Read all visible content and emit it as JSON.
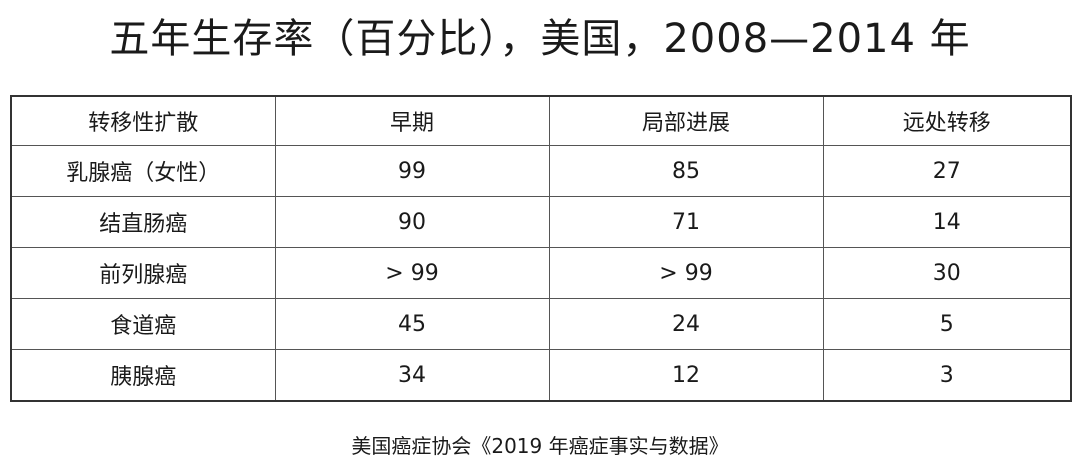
{
  "title": "五年生存率（百分比），美国，2008—2014 年",
  "table": {
    "headers": [
      "转移性扩散",
      "早期",
      "局部进展",
      "远处转移"
    ],
    "rows": [
      [
        "乳腺癌（女性）",
        "99",
        "85",
        "27"
      ],
      [
        "结直肠癌",
        "90",
        "71",
        "14"
      ],
      [
        "前列腺癌",
        "> 99",
        "> 99",
        "30"
      ],
      [
        "食道癌",
        "45",
        "24",
        "5"
      ],
      [
        "胰腺癌",
        "34",
        "12",
        "3"
      ]
    ]
  },
  "source": "美国癌症协会《2019 年癌症事实与数据》"
}
